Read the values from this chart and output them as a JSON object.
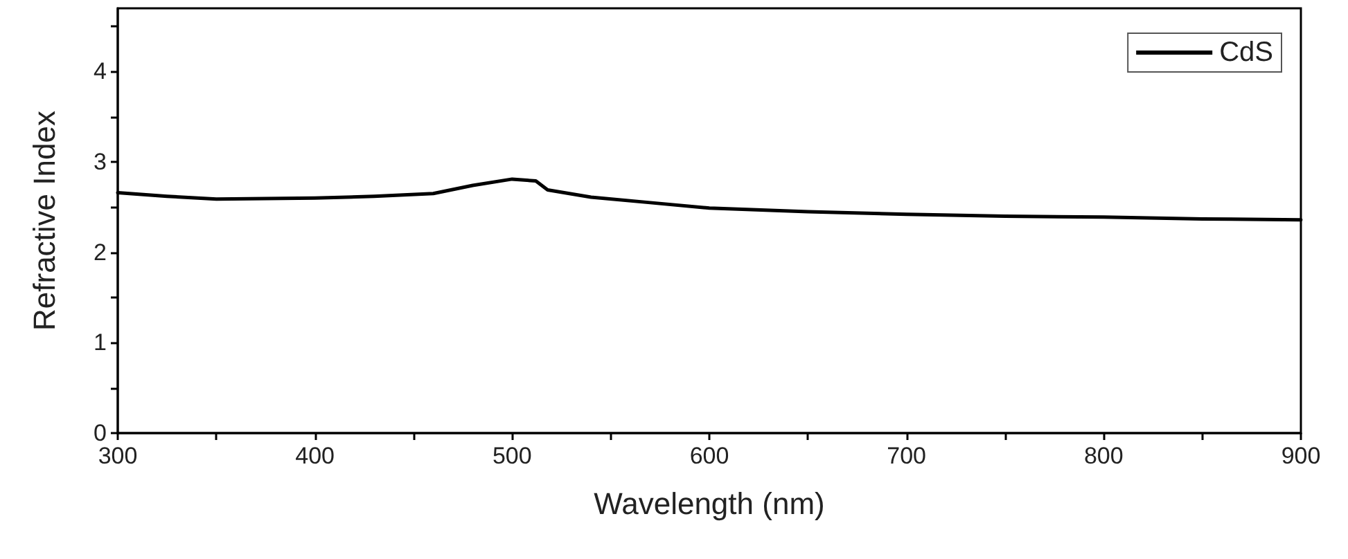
{
  "chart_data": {
    "type": "line",
    "xlabel": "Wavelength (nm)",
    "ylabel": "Refractive Index",
    "x": [
      300,
      325,
      350,
      400,
      430,
      460,
      480,
      500,
      512,
      518,
      540,
      570,
      600,
      650,
      700,
      750,
      800,
      850,
      900
    ],
    "series": [
      {
        "name": "CdS",
        "color": "#000000",
        "values": [
          2.66,
          2.62,
          2.59,
          2.6,
          2.62,
          2.65,
          2.74,
          2.81,
          2.79,
          2.69,
          2.61,
          2.55,
          2.49,
          2.45,
          2.42,
          2.4,
          2.39,
          2.37,
          2.36
        ]
      }
    ],
    "xlim": [
      300,
      900
    ],
    "xticks": [
      300,
      {
        "value": 350,
        "label": null
      },
      400,
      {
        "value": 450,
        "label": null
      },
      500,
      {
        "value": 550,
        "label": null
      },
      600,
      {
        "value": 650,
        "label": null
      },
      700,
      {
        "value": 750,
        "label": null
      },
      800,
      {
        "value": 850,
        "label": null
      },
      900
    ],
    "ylim": [
      0,
      4.7
    ],
    "yticks": [
      0,
      {
        "value": 0.5,
        "label": null
      },
      1,
      {
        "value": 1.5,
        "label": null
      },
      2,
      {
        "value": 2.5,
        "label": null
      },
      3,
      {
        "value": 3.5,
        "label": null
      },
      4,
      {
        "value": 4.5,
        "label": null
      }
    ],
    "grid": false,
    "legend": "top right",
    "marker": "none",
    "line_style": "solid"
  }
}
